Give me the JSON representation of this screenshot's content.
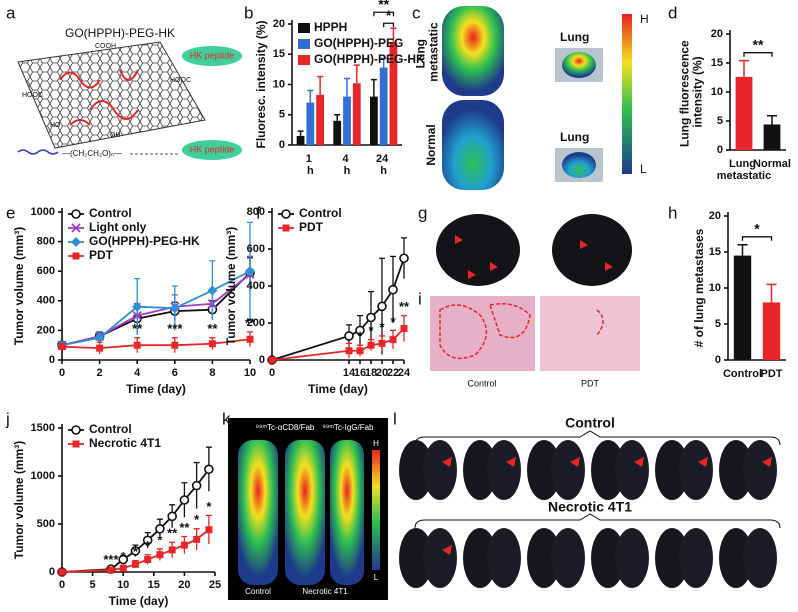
{
  "figure": {
    "a": {
      "letter": "a",
      "title": "GO(HPPH)-PEG-HK",
      "peptide_labels": [
        "HK peptide",
        "HK peptide"
      ],
      "chem_labels": [
        "COOH",
        "HOOC",
        "HOOC",
        "OH",
        "HO"
      ],
      "chain": "—(CH₂CH₂O)ₙ—"
    },
    "c": {
      "letter": "c",
      "row_labels": [
        "Lung metastatic",
        "Normal"
      ],
      "organ_labels": [
        "Lung",
        "Lung"
      ],
      "scale": [
        "H",
        "L"
      ]
    },
    "g": {
      "letter": "g"
    },
    "i": {
      "letter": "i",
      "labels": [
        "Control",
        "PDT"
      ]
    },
    "k": {
      "letter": "k",
      "probes": [
        "⁹⁹ᵐTc-αCD8/Fab",
        "⁹⁹ᵐTc-IgG/Fab"
      ],
      "groups": [
        "Control",
        "Necrotic 4T1"
      ],
      "scale": [
        "H",
        "L"
      ]
    },
    "l": {
      "letter": "l",
      "groups": [
        "Control",
        "Necrotic 4T1"
      ]
    }
  },
  "chart_data": [
    {
      "type": "bar",
      "panel": "b",
      "ylabel": "Fluoresc. intensity (%)",
      "categories": [
        "1 h",
        "4 h",
        "24 h"
      ],
      "series": [
        {
          "name": "HPPH",
          "color": "#111111",
          "values": [
            1.5,
            4,
            8
          ],
          "errors": [
            0.8,
            1,
            2.8
          ]
        },
        {
          "name": "GO(HPPH)-PEG",
          "color": "#2f6fd6",
          "values": [
            7,
            8,
            12.8
          ],
          "errors": [
            2,
            3,
            1.5
          ]
        },
        {
          "name": "GO(HPPH)-PEG-HK",
          "color": "#e8262a",
          "values": [
            8.3,
            10.2,
            17
          ],
          "errors": [
            3,
            3,
            2.3
          ]
        }
      ],
      "ylim": [
        0,
        20
      ],
      "yticks": [
        0,
        5,
        10,
        15,
        20
      ],
      "annotations": [
        "**",
        "*"
      ]
    },
    {
      "type": "bar",
      "panel": "d",
      "ylabel": "Lung fluorescence intensity (%)",
      "categories": [
        "Lung metastatic",
        "Normal"
      ],
      "values": [
        12.6,
        4.4
      ],
      "errors": [
        2.8,
        1.5
      ],
      "colors": [
        "#e8262a",
        "#111111"
      ],
      "ylim": [
        0,
        20
      ],
      "yticks": [
        0,
        5,
        10,
        15,
        20
      ],
      "annotations": [
        "**"
      ]
    },
    {
      "type": "line",
      "panel": "e",
      "xlabel": "Time (day)",
      "ylabel": "Tumor volume (mm³)",
      "x": [
        0,
        2,
        4,
        6,
        8,
        10
      ],
      "series": [
        {
          "name": "Control",
          "color": "#111111",
          "marker": "open-circle",
          "values": [
            100,
            160,
            280,
            330,
            340,
            590
          ],
          "errors": [
            20,
            30,
            100,
            60,
            60,
            100
          ]
        },
        {
          "name": "Light only",
          "color": "#a03cc8",
          "marker": "cross",
          "values": [
            100,
            160,
            300,
            360,
            380,
            580
          ],
          "errors": [
            20,
            30,
            80,
            80,
            80,
            120
          ]
        },
        {
          "name": "GO(HPPH)-PEG-HK",
          "color": "#2f8fd6",
          "marker": "diamond",
          "values": [
            100,
            150,
            360,
            350,
            470,
            600
          ],
          "errors": [
            20,
            40,
            190,
            150,
            200,
            330
          ]
        },
        {
          "name": "PDT",
          "color": "#e8262a",
          "marker": "square",
          "values": [
            90,
            80,
            100,
            100,
            110,
            140
          ],
          "errors": [
            20,
            40,
            50,
            50,
            40,
            50
          ]
        }
      ],
      "xlim": [
        0,
        10
      ],
      "xticks": [
        0,
        2,
        4,
        6,
        8,
        10
      ],
      "ylim": [
        0,
        1000
      ],
      "yticks": [
        0,
        200,
        400,
        600,
        800,
        1000
      ],
      "annotations": [
        "**",
        "***",
        "**",
        "**"
      ]
    },
    {
      "type": "line",
      "panel": "f",
      "ylabel": "Tumor volume (mm³)",
      "xlabel": "Time (day)",
      "x": [
        0,
        14,
        16,
        18,
        20,
        22,
        24
      ],
      "series": [
        {
          "name": "Control",
          "color": "#111111",
          "marker": "open-circle",
          "values": [
            0,
            130,
            160,
            230,
            290,
            380,
            550
          ],
          "errors": [
            0,
            60,
            80,
            140,
            260,
            180,
            110
          ]
        },
        {
          "name": "PDT",
          "color": "#e8262a",
          "marker": "square",
          "values": [
            0,
            50,
            50,
            80,
            90,
            110,
            170
          ],
          "errors": [
            0,
            40,
            30,
            30,
            40,
            50,
            70
          ]
        }
      ],
      "xlim": [
        0,
        24
      ],
      "xticks": [
        0,
        14,
        16,
        18,
        20,
        22,
        24
      ],
      "ylim": [
        0,
        800
      ],
      "yticks": [
        0,
        200,
        400,
        600,
        800
      ],
      "annotations": [
        "*",
        "*",
        "*",
        "*",
        "**"
      ]
    },
    {
      "type": "bar",
      "panel": "h",
      "ylabel": "# of lung metastases",
      "categories": [
        "Control",
        "PDT"
      ],
      "values": [
        14.5,
        8
      ],
      "errors": [
        1.5,
        2.5
      ],
      "colors": [
        "#111111",
        "#e8262a"
      ],
      "ylim": [
        0,
        20
      ],
      "yticks": [
        0,
        5,
        10,
        15,
        20
      ],
      "annotations": [
        "*"
      ]
    },
    {
      "type": "line",
      "panel": "j",
      "ylabel": "Tumor volume (mm³)",
      "xlabel": "Time (day)",
      "x": [
        0,
        8,
        10,
        12,
        14,
        16,
        18,
        20,
        22,
        24
      ],
      "series": [
        {
          "name": "Control",
          "color": "#111111",
          "marker": "open-circle",
          "values": [
            0,
            30,
            130,
            220,
            330,
            450,
            580,
            750,
            900,
            1070
          ],
          "errors": [
            0,
            20,
            40,
            60,
            80,
            100,
            120,
            180,
            240,
            230
          ]
        },
        {
          "name": "Necrotic 4T1",
          "color": "#e8262a",
          "marker": "square",
          "values": [
            0,
            20,
            40,
            80,
            130,
            180,
            230,
            280,
            340,
            440
          ],
          "errors": [
            0,
            15,
            25,
            40,
            50,
            60,
            80,
            90,
            110,
            150
          ]
        }
      ],
      "xlim": [
        0,
        25
      ],
      "xticks": [
        0,
        5,
        10,
        15,
        20,
        25
      ],
      "ylim": [
        0,
        1500
      ],
      "yticks": [
        0,
        500,
        1000,
        1500
      ],
      "annotations": [
        "***",
        "*",
        "*",
        "*",
        "*",
        "**",
        "**",
        "*",
        "*"
      ]
    }
  ]
}
